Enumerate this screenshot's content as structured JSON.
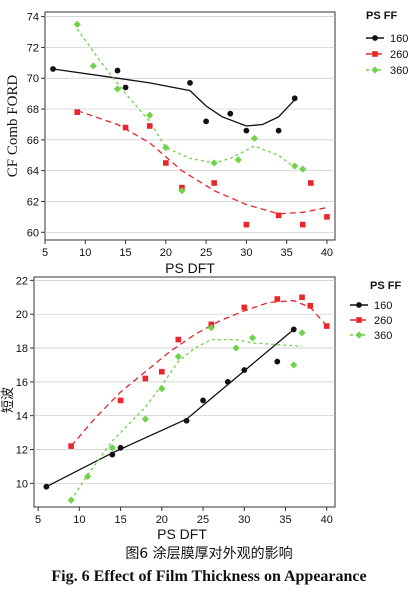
{
  "colors": {
    "s160": "#111111",
    "s260": "#e8262b",
    "s360": "#6fd24a",
    "axis": "#222222"
  },
  "caption": {
    "cn": "图6  涂层膜厚对外观的影响",
    "en": "Fig. 6  Effect of Film Thickness on Appearance"
  },
  "chart_data": [
    {
      "type": "scatter",
      "title": "",
      "xlabel": "PS DFT",
      "ylabel": "CF Comb FORD",
      "xlim": [
        5,
        41
      ],
      "ylim": [
        59.5,
        74.3
      ],
      "xticks": [
        5,
        10,
        15,
        20,
        25,
        30,
        35,
        40
      ],
      "yticks": [
        60,
        62,
        64,
        66,
        68,
        70,
        72,
        74
      ],
      "legend_title": "PS FF",
      "legend_position": "right",
      "series": [
        {
          "name": "160",
          "color_key": "s160",
          "marker": "circle",
          "line": "solid",
          "points": [
            [
              6,
              70.6
            ],
            [
              14,
              70.5
            ],
            [
              15,
              69.4
            ],
            [
              23,
              69.7
            ],
            [
              25,
              67.2
            ],
            [
              28,
              67.7
            ],
            [
              30,
              66.6
            ],
            [
              34,
              66.6
            ],
            [
              36,
              68.7
            ]
          ],
          "fit": [
            [
              6,
              70.6
            ],
            [
              14,
              70
            ],
            [
              18,
              69.7
            ],
            [
              23,
              69.2
            ],
            [
              25,
              68.2
            ],
            [
              27,
              67.5
            ],
            [
              30,
              66.9
            ],
            [
              32,
              67
            ],
            [
              34,
              67.5
            ],
            [
              36,
              68.6
            ]
          ]
        },
        {
          "name": "260",
          "color_key": "s260",
          "marker": "square",
          "line": "dashed",
          "points": [
            [
              9,
              67.8
            ],
            [
              15,
              66.8
            ],
            [
              18,
              66.9
            ],
            [
              20,
              64.5
            ],
            [
              22,
              62.9
            ],
            [
              26,
              63.2
            ],
            [
              30,
              60.5
            ],
            [
              34,
              61.1
            ],
            [
              37,
              60.5
            ],
            [
              38,
              63.2
            ],
            [
              40,
              61
            ]
          ],
          "fit": [
            [
              9,
              67.9
            ],
            [
              14,
              67
            ],
            [
              18,
              65.8
            ],
            [
              22,
              64
            ],
            [
              26,
              62.7
            ],
            [
              30,
              61.8
            ],
            [
              34,
              61.2
            ],
            [
              37,
              61.3
            ],
            [
              40,
              61.6
            ]
          ]
        },
        {
          "name": "360",
          "color_key": "s360",
          "marker": "diamond",
          "line": "dotted",
          "points": [
            [
              9,
              73.5
            ],
            [
              11,
              70.8
            ],
            [
              14,
              69.3
            ],
            [
              18,
              67.6
            ],
            [
              20,
              65.5
            ],
            [
              22,
              62.7
            ],
            [
              26,
              64.5
            ],
            [
              29,
              64.7
            ],
            [
              31,
              66.1
            ],
            [
              36,
              64.3
            ],
            [
              37,
              64.1
            ]
          ],
          "fit": [
            [
              9,
              73.2
            ],
            [
              12,
              71
            ],
            [
              15,
              69
            ],
            [
              18,
              67.2
            ],
            [
              20,
              65.5
            ],
            [
              23,
              64.8
            ],
            [
              26,
              64.5
            ],
            [
              28,
              64.8
            ],
            [
              31,
              65.6
            ],
            [
              34,
              65
            ],
            [
              36,
              64.2
            ]
          ]
        }
      ]
    },
    {
      "type": "scatter",
      "title": "",
      "xlabel": "PS DFT",
      "ylabel": "短波",
      "xlim": [
        4.5,
        41
      ],
      "ylim": [
        8.6,
        22.2
      ],
      "xticks": [
        5,
        10,
        15,
        20,
        25,
        30,
        35,
        40
      ],
      "yticks": [
        10,
        12,
        14,
        16,
        18,
        20,
        22
      ],
      "legend_title": "PS FF",
      "legend_position": "right",
      "series": [
        {
          "name": "160",
          "color_key": "s160",
          "marker": "circle",
          "line": "solid",
          "points": [
            [
              6,
              9.8
            ],
            [
              14,
              11.7
            ],
            [
              15,
              12.1
            ],
            [
              23,
              13.7
            ],
            [
              25,
              14.9
            ],
            [
              28,
              16
            ],
            [
              30,
              16.7
            ],
            [
              34,
              17.2
            ],
            [
              36,
              19.1
            ]
          ],
          "fit": [
            [
              6,
              9.8
            ],
            [
              14,
              11.8
            ],
            [
              23,
              13.8
            ],
            [
              36,
              19.1
            ]
          ]
        },
        {
          "name": "260",
          "color_key": "s260",
          "marker": "square",
          "line": "dashed",
          "points": [
            [
              9,
              12.2
            ],
            [
              15,
              14.9
            ],
            [
              18,
              16.2
            ],
            [
              20,
              16.6
            ],
            [
              22,
              18.5
            ],
            [
              26,
              19.4
            ],
            [
              30,
              20.4
            ],
            [
              34,
              20.9
            ],
            [
              37,
              21
            ],
            [
              38,
              20.5
            ],
            [
              40,
              19.3
            ]
          ],
          "fit": [
            [
              9,
              12.2
            ],
            [
              12,
              13.9
            ],
            [
              15,
              15.4
            ],
            [
              18,
              16.6
            ],
            [
              21,
              17.8
            ],
            [
              24,
              18.8
            ],
            [
              27,
              19.6
            ],
            [
              30,
              20.2
            ],
            [
              33,
              20.7
            ],
            [
              36,
              20.8
            ],
            [
              38,
              20.4
            ],
            [
              40,
              19.3
            ]
          ]
        },
        {
          "name": "360",
          "color_key": "s360",
          "marker": "diamond",
          "line": "dotted",
          "points": [
            [
              9,
              9
            ],
            [
              11,
              10.4
            ],
            [
              14,
              12.1
            ],
            [
              18,
              13.8
            ],
            [
              20,
              15.6
            ],
            [
              22,
              17.5
            ],
            [
              26,
              19.2
            ],
            [
              29,
              18
            ],
            [
              31,
              18.6
            ],
            [
              36,
              17
            ],
            [
              37,
              18.9
            ]
          ],
          "fit": [
            [
              9,
              9
            ],
            [
              11,
              10.5
            ],
            [
              14,
              12.5
            ],
            [
              18,
              14.5
            ],
            [
              20,
              15.8
            ],
            [
              22,
              17.2
            ],
            [
              24,
              18
            ],
            [
              26,
              18.5
            ],
            [
              29,
              18.5
            ],
            [
              31,
              18.3
            ],
            [
              34,
              18.2
            ],
            [
              37,
              18.1
            ]
          ]
        }
      ]
    }
  ]
}
